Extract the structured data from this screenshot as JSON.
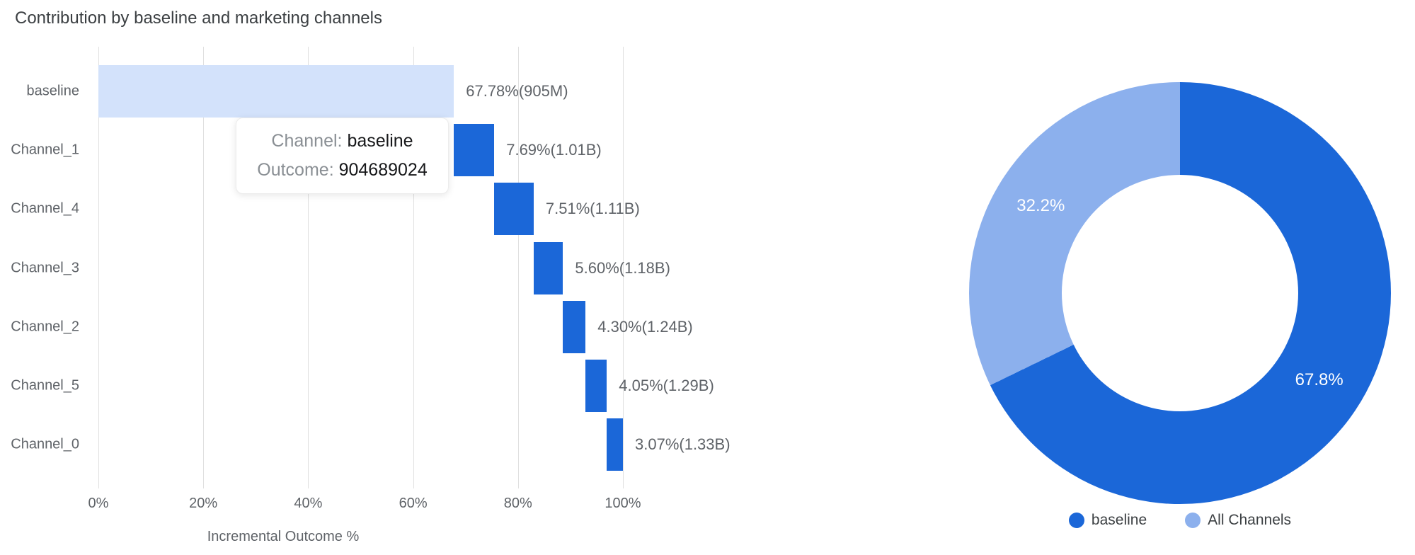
{
  "title": "Contribution by baseline and marketing channels",
  "colors": {
    "bar_blue": "#1b67d8",
    "baseline_light_blue": "#d3e2fb",
    "donut_light_blue": "#8cb0ed",
    "gridline": "#e0e0e0",
    "label_gray": "#5f6368",
    "title_gray": "#3c4043"
  },
  "tooltip": {
    "channel_label": "Channel:",
    "channel_value": "baseline",
    "outcome_label": "Outcome:",
    "outcome_value": "904689024"
  },
  "chart_data": [
    {
      "type": "bar",
      "variant": "horizontal-waterfall",
      "title": "Contribution by baseline and marketing channels",
      "xlabel": "Incremental Outcome %",
      "xlim": [
        0,
        100
      ],
      "grid": true,
      "x_ticks": [
        {
          "pct": 0,
          "label": "0%"
        },
        {
          "pct": 20,
          "label": "20%"
        },
        {
          "pct": 40,
          "label": "40%"
        },
        {
          "pct": 60,
          "label": "60%"
        },
        {
          "pct": 80,
          "label": "80%"
        },
        {
          "pct": 100,
          "label": "100%"
        }
      ],
      "categories": [
        "baseline",
        "Channel_1",
        "Channel_4",
        "Channel_3",
        "Channel_2",
        "Channel_5",
        "Channel_0"
      ],
      "segments": [
        {
          "label": "baseline",
          "pct": 67.78,
          "start_pct": 0.0,
          "end_pct": 67.78,
          "annotation": "67.78%(905M)",
          "color": "#d3e2fb"
        },
        {
          "label": "Channel_1",
          "pct": 7.69,
          "start_pct": 67.78,
          "end_pct": 75.47,
          "annotation": "7.69%(1.01B)",
          "color": "#1b67d8"
        },
        {
          "label": "Channel_4",
          "pct": 7.51,
          "start_pct": 75.47,
          "end_pct": 82.98,
          "annotation": "7.51%(1.11B)",
          "color": "#1b67d8"
        },
        {
          "label": "Channel_3",
          "pct": 5.6,
          "start_pct": 82.98,
          "end_pct": 88.58,
          "annotation": "5.60%(1.18B)",
          "color": "#1b67d8"
        },
        {
          "label": "Channel_2",
          "pct": 4.3,
          "start_pct": 88.58,
          "end_pct": 92.88,
          "annotation": "4.30%(1.24B)",
          "color": "#1b67d8"
        },
        {
          "label": "Channel_5",
          "pct": 4.05,
          "start_pct": 92.88,
          "end_pct": 96.93,
          "annotation": "4.05%(1.29B)",
          "color": "#1b67d8"
        },
        {
          "label": "Channel_0",
          "pct": 3.07,
          "start_pct": 96.93,
          "end_pct": 100.0,
          "annotation": "3.07%(1.33B)",
          "color": "#1b67d8"
        }
      ]
    },
    {
      "type": "pie",
      "variant": "donut",
      "start_angle_deg": 0,
      "direction": "clockwise",
      "legend_position": "bottom",
      "slices": [
        {
          "label": "baseline",
          "value": 67.8,
          "display": "67.8%",
          "color": "#1b67d8"
        },
        {
          "label": "All Channels",
          "value": 32.2,
          "display": "32.2%",
          "color": "#8cb0ed"
        }
      ]
    }
  ]
}
